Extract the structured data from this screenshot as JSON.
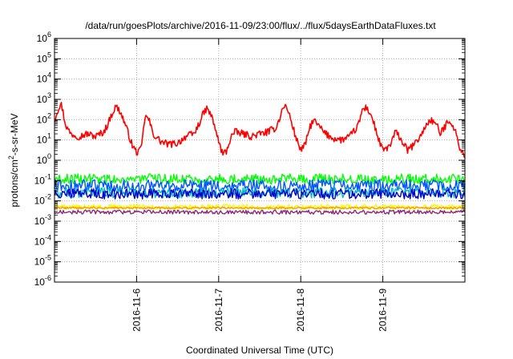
{
  "chart_data": {
    "type": "line",
    "title": "/data/run/goesPlots/archive/2016-11-09/23:00/flux/../flux/5daysEarthDataFluxes.txt",
    "xlabel": "Coordinated Universal Time (UTC)",
    "ylabel_prefix": "protons/cm",
    "ylabel_sup": "2",
    "ylabel_suffix": "-s-sr-MeV",
    "y_scale": "log",
    "ylim": [
      1e-06,
      1000000.0
    ],
    "xlim": [
      0,
      5
    ],
    "grid": true,
    "yticks": [
      {
        "base": "10",
        "exp": "-6",
        "value": -6
      },
      {
        "base": "10",
        "exp": "-5",
        "value": -5
      },
      {
        "base": "10",
        "exp": "-4",
        "value": -4
      },
      {
        "base": "10",
        "exp": "-3",
        "value": -3
      },
      {
        "base": "10",
        "exp": "-2",
        "value": -2
      },
      {
        "base": "10",
        "exp": "-1",
        "value": -1
      },
      {
        "base": "10",
        "exp": "0",
        "value": 0
      },
      {
        "base": "10",
        "exp": "1",
        "value": 1
      },
      {
        "base": "10",
        "exp": "2",
        "value": 2
      },
      {
        "base": "10",
        "exp": "3",
        "value": 3
      },
      {
        "base": "10",
        "exp": "4",
        "value": 4
      },
      {
        "base": "10",
        "exp": "5",
        "value": 5
      },
      {
        "base": "10",
        "exp": "6",
        "value": 6
      }
    ],
    "xticks": [
      {
        "label": "2016-11-6",
        "value": 1
      },
      {
        "label": "2016-11-7",
        "value": 2
      },
      {
        "label": "2016-11-8",
        "value": 3
      },
      {
        "label": "2016-11-9",
        "value": 4
      }
    ],
    "series": [
      {
        "color": "#ff0000",
        "x": [
          0,
          0.05,
          0.08,
          0.1,
          0.12,
          0.15,
          0.2,
          0.3,
          0.4,
          0.5,
          0.6,
          0.65,
          0.7,
          0.75,
          0.8,
          0.85,
          0.9,
          0.95,
          1.0,
          1.05,
          1.08,
          1.1,
          1.15,
          1.2,
          1.3,
          1.4,
          1.5,
          1.6,
          1.7,
          1.75,
          1.8,
          1.85,
          1.9,
          1.95,
          2.0,
          2.05,
          2.1,
          2.15,
          2.2,
          2.3,
          2.4,
          2.5,
          2.6,
          2.7,
          2.75,
          2.8,
          2.85,
          2.9,
          2.95,
          3.0,
          3.05,
          3.1,
          3.15,
          3.2,
          3.3,
          3.4,
          3.5,
          3.6,
          3.7,
          3.75,
          3.8,
          3.85,
          3.9,
          3.95,
          4.0,
          4.05,
          4.1,
          4.15,
          4.2,
          4.3,
          4.4,
          4.5,
          4.55,
          4.6,
          4.65,
          4.7,
          4.75,
          4.8,
          4.85,
          4.9,
          4.95,
          5.0
        ],
        "y": [
          100,
          400,
          600,
          300,
          100,
          40,
          20,
          15,
          20,
          15,
          25,
          60,
          200,
          450,
          250,
          80,
          20,
          5,
          2.5,
          3,
          20,
          150,
          100,
          20,
          8,
          6,
          7,
          15,
          20,
          50,
          150,
          350,
          200,
          50,
          8,
          2,
          3,
          15,
          25,
          20,
          15,
          20,
          25,
          40,
          150,
          550,
          250,
          50,
          10,
          3.5,
          5,
          30,
          100,
          60,
          20,
          12,
          10,
          15,
          50,
          300,
          400,
          200,
          50,
          10,
          3,
          4,
          6,
          25,
          15,
          3,
          7,
          30,
          80,
          90,
          60,
          20,
          40,
          100,
          60,
          15,
          3,
          1.5
        ]
      },
      {
        "color": "#00ff00",
        "base": 0.12,
        "amp": 0.25
      },
      {
        "color": "#0055ff",
        "base": 0.055,
        "amp": 0.3
      },
      {
        "color": "#00b8c8",
        "base": 0.025,
        "amp": 0.25
      },
      {
        "color": "#0000cc",
        "base": 0.022,
        "amp": 0.25
      },
      {
        "color": "#f0ff00",
        "base": 0.005,
        "amp": 0.12
      },
      {
        "color": "#ff9900",
        "base": 0.0045,
        "amp": 0.05
      },
      {
        "color": "#8b2a7a",
        "base": 0.0028,
        "amp": 0.1
      }
    ]
  }
}
